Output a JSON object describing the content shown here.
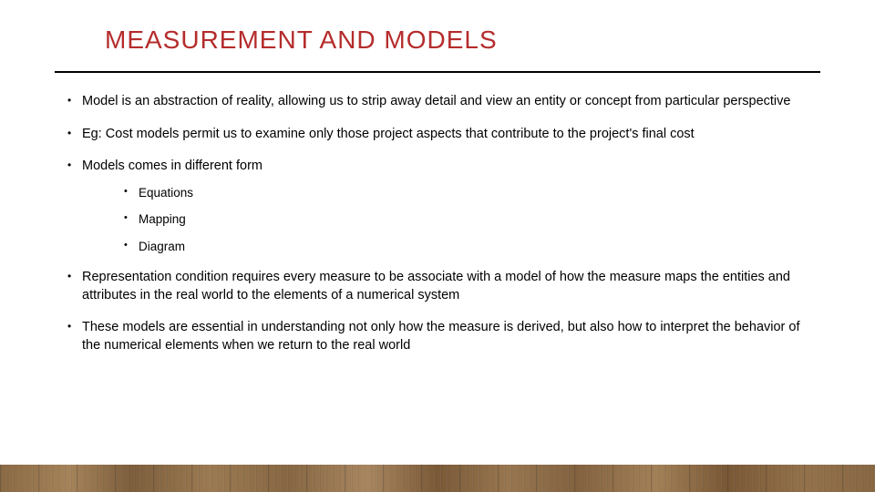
{
  "title": "MEASUREMENT AND MODELS",
  "bullets": {
    "b1": "Model is an abstraction of reality, allowing us to strip away detail and view an entity or concept from particular perspective",
    "b2": "Eg: Cost models permit us to examine only those project aspects that contribute to the project's final cost",
    "b3": "Models comes in different form",
    "b3_sub": {
      "s1": "Equations",
      "s2": "Mapping",
      "s3": "Diagram"
    },
    "b4": "Representation condition requires every measure to be associate with a model of how the measure maps the entities and attributes in the  real world to the elements of a numerical system",
    "b5": "These models are essential in understanding not only how the measure is derived, but also how to interpret the behavior of the numerical elements when we return to the real world"
  },
  "colors": {
    "title": "#b52c2c",
    "rule": "#000000",
    "text": "#000000",
    "background": "#ffffff"
  }
}
